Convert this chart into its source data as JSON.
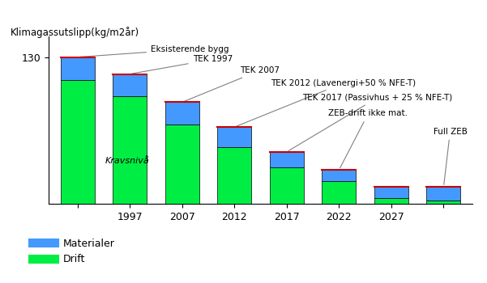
{
  "title": "Klimagassutslipp(kg/m2år)",
  "x_labels": [
    "",
    "1997",
    "2007",
    "2012",
    "2017",
    "2022",
    "2027",
    ""
  ],
  "drift": [
    110,
    95,
    70,
    50,
    32,
    20,
    5,
    3
  ],
  "materialer": [
    20,
    20,
    20,
    18,
    14,
    10,
    10,
    12
  ],
  "bar_width": 0.65,
  "color_drift": "#00ee44",
  "color_materialer": "#4499ff",
  "color_outline": "#cc0000",
  "ylim": [
    0,
    148
  ],
  "background_color": "#ffffff",
  "legend_materialer": "Materialer",
  "legend_drift": "Drift",
  "kravsniva_text": "Kravsnivå"
}
